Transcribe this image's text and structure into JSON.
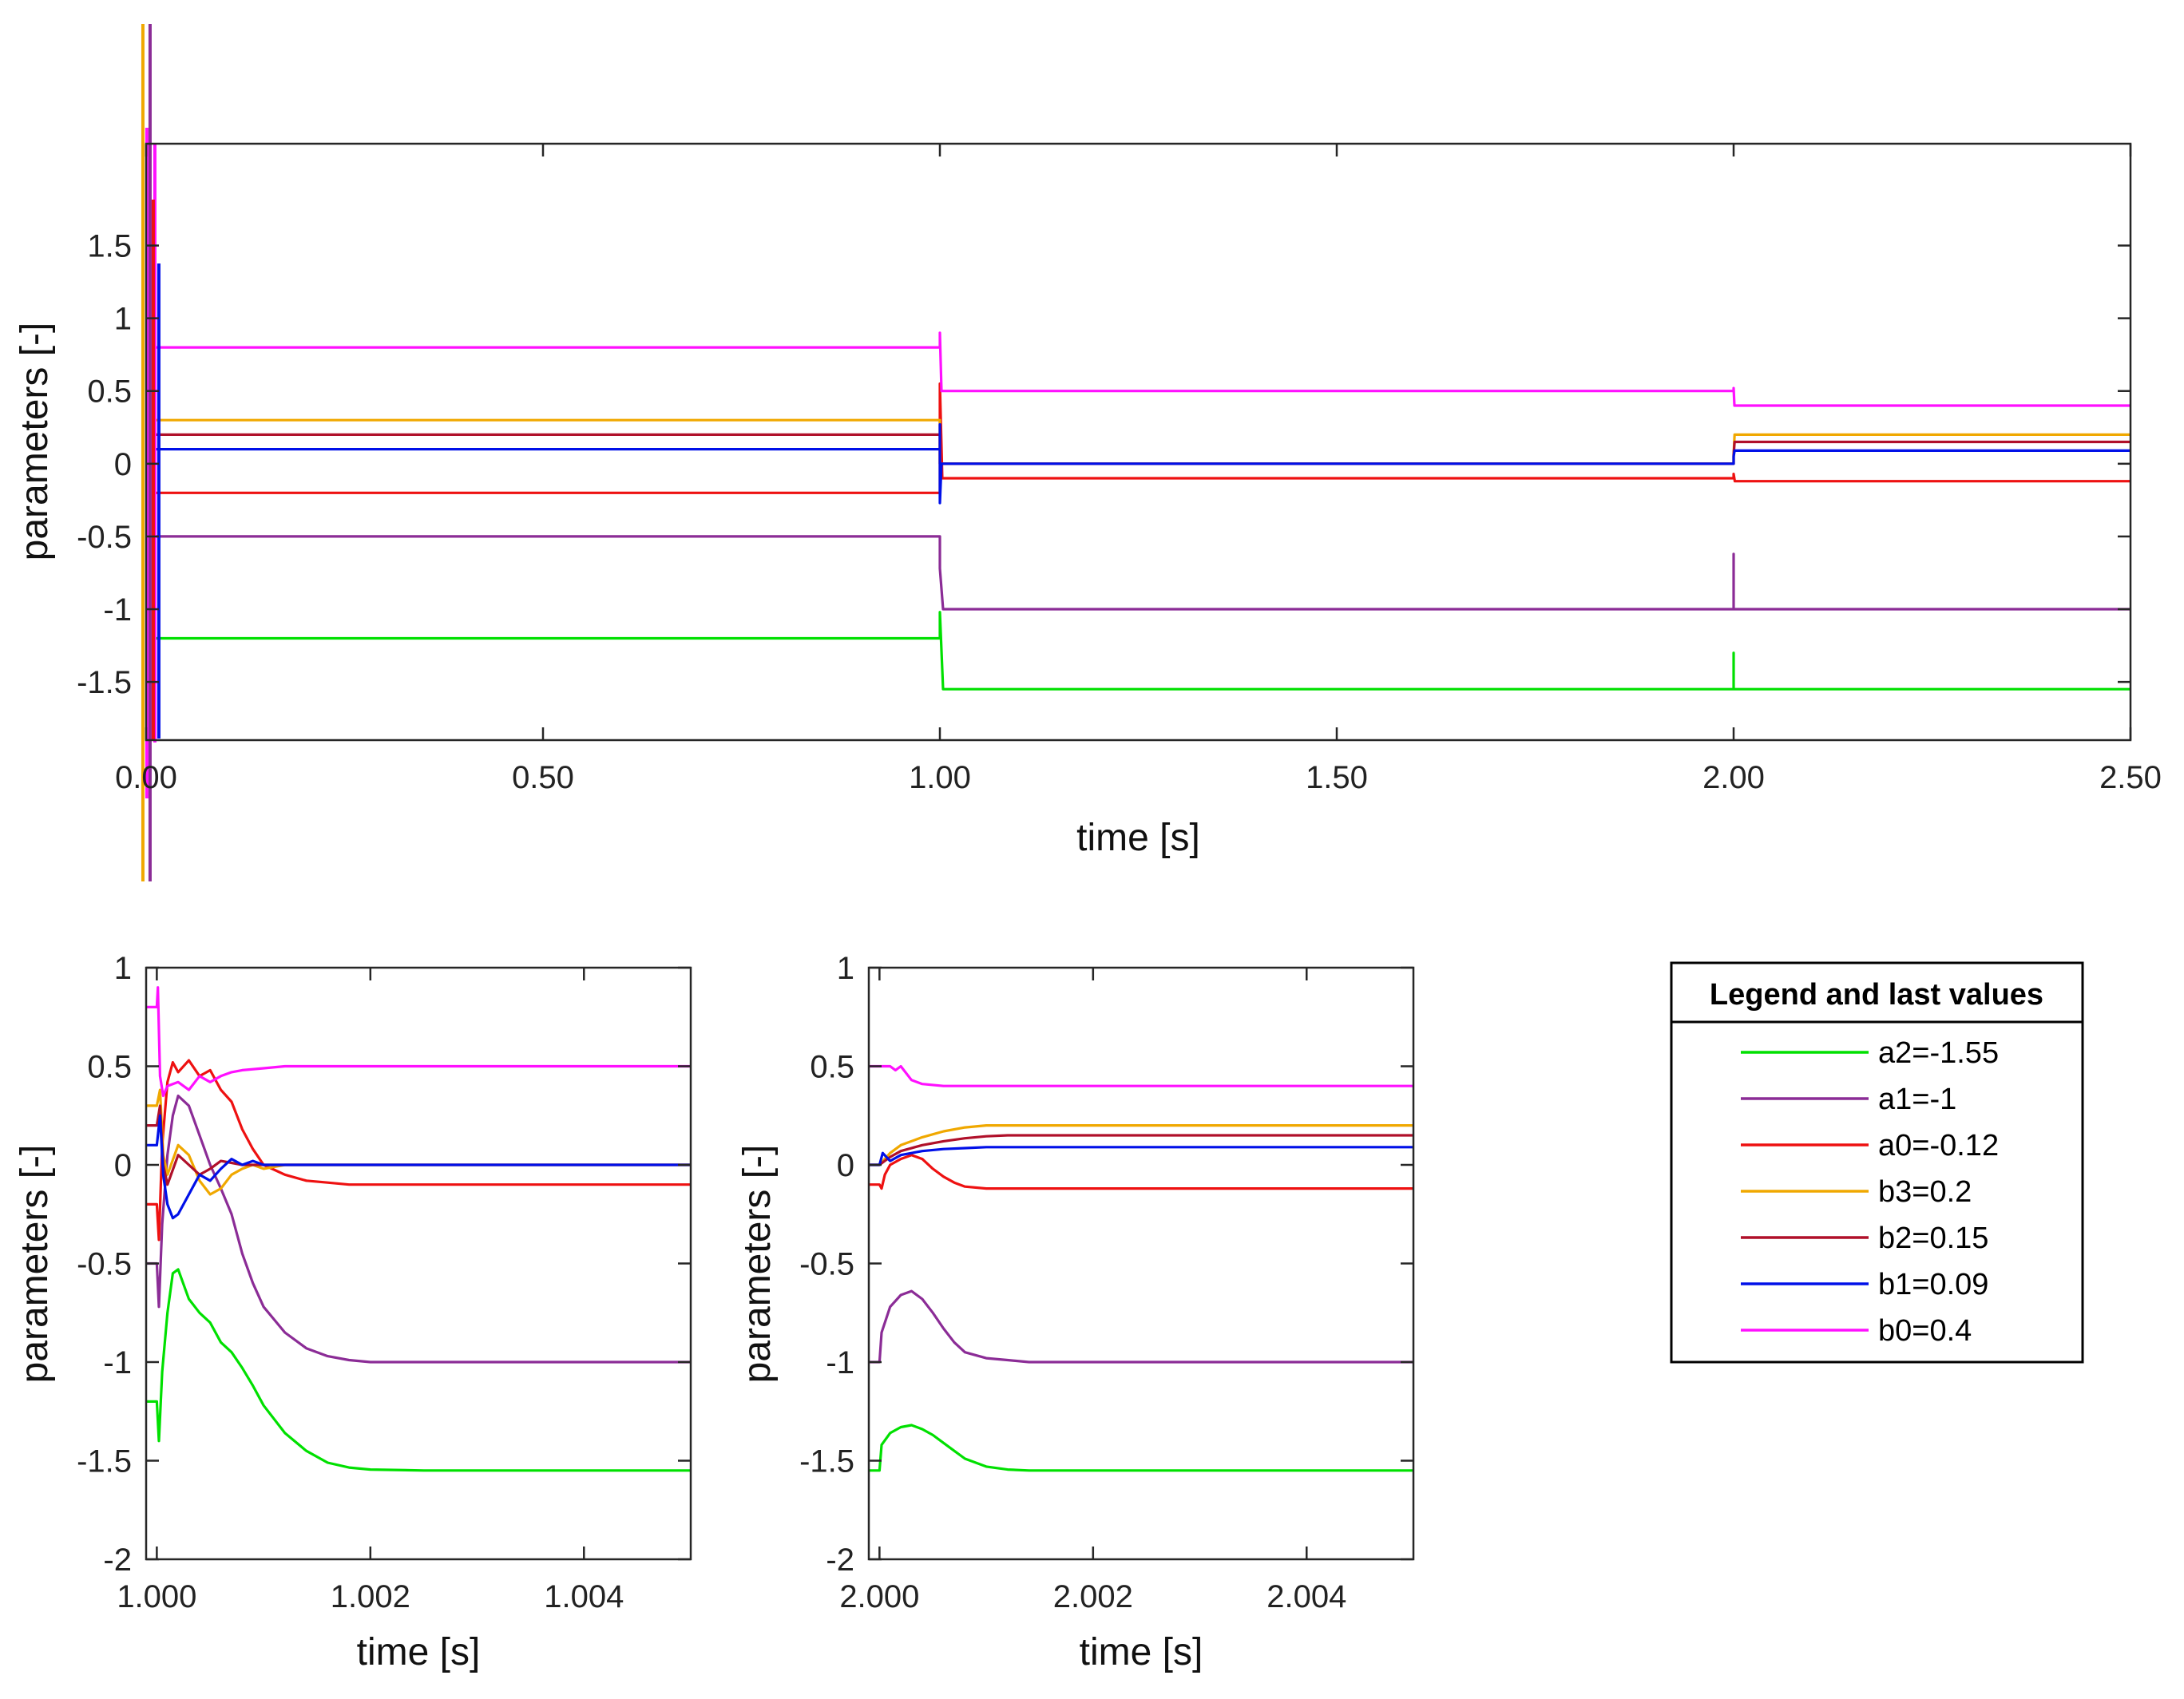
{
  "chart_data": [
    {
      "id": "overview",
      "type": "line",
      "title": "",
      "xlabel": "time [s]",
      "ylabel": "parameters [-]",
      "xlim": [
        0,
        2.5
      ],
      "ylim": [
        -1.9,
        2.2
      ],
      "xticks": [
        0,
        0.5,
        1.0,
        1.5,
        2.0,
        2.5
      ],
      "xtick_labels": [
        "0.00",
        "0.50",
        "1.00",
        "1.50",
        "2.00",
        "2.50"
      ],
      "yticks": [
        -1.5,
        -1,
        -0.5,
        0,
        0.5,
        1,
        1.5
      ],
      "ytick_labels": [
        "-1.5",
        "-1",
        "-0.5",
        "0",
        "0.5",
        "1",
        "1.5"
      ],
      "grid": false,
      "series": [
        {
          "name": "a2",
          "color": "#00e000",
          "x": [
            0.008,
            1.0,
            1.0,
            1.004,
            1.004,
            2.0,
            2.0,
            2.0,
            2.0025,
            2.0025,
            2.5
          ],
          "y": [
            -1.2,
            -1.2,
            -1.02,
            -1.55,
            -1.55,
            -1.55,
            -1.3,
            -1.55,
            -1.55,
            -1.55,
            -1.55
          ]
        },
        {
          "name": "a1",
          "color": "#8b2c96",
          "x": [
            0.008,
            1.0,
            1.0,
            1.004,
            1.004,
            2.0,
            2.0,
            2.0,
            2.0025,
            2.0025,
            2.5
          ],
          "y": [
            -0.5,
            -0.5,
            -0.72,
            -1.0,
            -1.0,
            -1.0,
            -0.62,
            -1.0,
            -1.0,
            -1.0,
            -1.0
          ]
        },
        {
          "name": "a0",
          "color": "#ee1111",
          "x": [
            0.008,
            1.0,
            1.0,
            1.003,
            2.0,
            2.0,
            2.0015,
            2.5
          ],
          "y": [
            -0.2,
            -0.2,
            0.55,
            -0.1,
            -0.1,
            -0.07,
            -0.12,
            -0.12
          ]
        },
        {
          "name": "b3",
          "color": "#f0a800",
          "x": [
            0.008,
            1.0,
            1.0,
            1.002,
            2.0,
            2.0,
            2.0012,
            2.5
          ],
          "y": [
            0.3,
            0.3,
            0.0,
            0.0,
            0.0,
            0.06,
            0.2,
            0.2
          ]
        },
        {
          "name": "b2",
          "color": "#b0102a",
          "x": [
            0.008,
            1.0,
            1.0,
            1.002,
            2.0,
            2.0,
            2.0012,
            2.5
          ],
          "y": [
            0.2,
            0.2,
            0.0,
            0.0,
            0.0,
            0.06,
            0.15,
            0.15
          ]
        },
        {
          "name": "b1",
          "color": "#0010e8",
          "x": [
            0.008,
            1.0,
            1.0,
            1.0,
            1.002,
            2.0,
            2.0,
            2.0012,
            2.5
          ],
          "y": [
            0.1,
            0.1,
            0.27,
            -0.27,
            0.0,
            0.0,
            0.05,
            0.09,
            0.09
          ]
        },
        {
          "name": "b0",
          "color": "#ff10ff",
          "x": [
            0.008,
            1.0,
            1.0,
            1.002,
            1.002,
            2.0,
            2.0,
            2.001,
            2.5
          ],
          "y": [
            0.8,
            0.8,
            0.9,
            0.5,
            0.5,
            0.5,
            0.52,
            0.4,
            0.4
          ]
        }
      ],
      "startup_transient": {
        "t": 0.01,
        "note": "strong oscillation of all estimates near t=0 before convergence"
      }
    },
    {
      "id": "zoom_switch_1",
      "type": "line",
      "title": "",
      "xlabel": "time [s]",
      "ylabel": "parameters [-]",
      "xlim": [
        0.9999,
        1.005
      ],
      "ylim": [
        -2,
        1
      ],
      "xticks": [
        1.0,
        1.002,
        1.004
      ],
      "xtick_labels": [
        "1.000",
        "1.002",
        "1.004"
      ],
      "yticks": [
        -2,
        -1.5,
        -1,
        -0.5,
        0,
        0.5,
        1
      ],
      "ytick_labels": [
        "-2",
        "-1.5",
        "-1",
        "-0.5",
        "0",
        "0.5",
        "1"
      ],
      "grid": false,
      "series": [
        {
          "name": "a2",
          "color": "#00e000",
          "x": [
            0.9999,
            1.0,
            1.00002,
            1.00005,
            1.0001,
            1.00015,
            1.0002,
            1.0003,
            1.0004,
            1.0005,
            1.0006,
            1.0007,
            1.0008,
            1.0009,
            1.001,
            1.0012,
            1.0014,
            1.0016,
            1.0018,
            1.002,
            1.0025,
            1.003,
            1.004,
            1.005
          ],
          "y": [
            -1.2,
            -1.2,
            -1.4,
            -1.05,
            -0.75,
            -0.55,
            -0.53,
            -0.68,
            -0.75,
            -0.8,
            -0.9,
            -0.95,
            -1.03,
            -1.12,
            -1.22,
            -1.36,
            -1.45,
            -1.51,
            -1.535,
            -1.545,
            -1.55,
            -1.55,
            -1.55,
            -1.55
          ]
        },
        {
          "name": "a1",
          "color": "#8b2c96",
          "x": [
            0.9999,
            1.0,
            1.00002,
            1.00005,
            1.0001,
            1.00015,
            1.0002,
            1.0003,
            1.0004,
            1.0005,
            1.0006,
            1.0007,
            1.0008,
            1.0009,
            1.001,
            1.0012,
            1.0014,
            1.0016,
            1.0018,
            1.002,
            1.0025,
            1.003,
            1.004,
            1.005
          ],
          "y": [
            -0.5,
            -0.5,
            -0.72,
            -0.3,
            0.05,
            0.25,
            0.35,
            0.3,
            0.15,
            0.0,
            -0.12,
            -0.25,
            -0.45,
            -0.6,
            -0.72,
            -0.85,
            -0.93,
            -0.97,
            -0.99,
            -1.0,
            -1.0,
            -1.0,
            -1.0,
            -1.0
          ]
        },
        {
          "name": "a0",
          "color": "#ee1111",
          "x": [
            0.9999,
            1.0,
            1.00002,
            1.00005,
            1.0001,
            1.00015,
            1.0002,
            1.0003,
            1.0004,
            1.0005,
            1.0006,
            1.0007,
            1.0008,
            1.0009,
            1.001,
            1.0012,
            1.0014,
            1.0016,
            1.0018,
            1.002,
            1.0025,
            1.003,
            1.004,
            1.005
          ],
          "y": [
            -0.2,
            -0.2,
            -0.38,
            0.1,
            0.42,
            0.52,
            0.47,
            0.53,
            0.45,
            0.48,
            0.38,
            0.32,
            0.18,
            0.08,
            0.0,
            -0.05,
            -0.08,
            -0.09,
            -0.1,
            -0.1,
            -0.1,
            -0.1,
            -0.1,
            -0.1
          ]
        },
        {
          "name": "b3",
          "color": "#f0a800",
          "x": [
            0.9999,
            1.0,
            1.00003,
            1.00006,
            1.0001,
            1.0002,
            1.0003,
            1.0004,
            1.0005,
            1.0006,
            1.0007,
            1.0008,
            1.0009,
            1.001,
            1.0012,
            1.0014,
            1.002,
            1.003,
            1.004,
            1.005
          ],
          "y": [
            0.3,
            0.3,
            0.38,
            0.05,
            -0.05,
            0.1,
            0.05,
            -0.08,
            -0.15,
            -0.12,
            -0.05,
            -0.02,
            0.0,
            -0.02,
            0.0,
            0.0,
            0.0,
            0.0,
            0.0,
            0.0
          ]
        },
        {
          "name": "b2",
          "color": "#b0102a",
          "x": [
            0.9999,
            1.0,
            1.00003,
            1.00006,
            1.0001,
            1.0002,
            1.0003,
            1.0004,
            1.0005,
            1.0006,
            1.0007,
            1.0008,
            1.0009,
            1.001,
            1.0012,
            1.0014,
            1.002,
            1.003,
            1.004,
            1.005
          ],
          "y": [
            0.2,
            0.2,
            0.3,
            0.0,
            -0.1,
            0.05,
            0.0,
            -0.05,
            -0.02,
            0.02,
            0.01,
            0.0,
            0.0,
            0.0,
            0.0,
            0.0,
            0.0,
            0.0,
            0.0,
            0.0
          ]
        },
        {
          "name": "b1",
          "color": "#0010e8",
          "x": [
            0.9999,
            1.0,
            1.00003,
            1.00006,
            1.0001,
            1.00015,
            1.0002,
            1.0003,
            1.0004,
            1.0005,
            1.0006,
            1.0007,
            1.0008,
            1.0009,
            1.001,
            1.0012,
            1.0014,
            1.002,
            1.003,
            1.004,
            1.005
          ],
          "y": [
            0.1,
            0.1,
            0.25,
            -0.05,
            -0.2,
            -0.27,
            -0.25,
            -0.15,
            -0.05,
            -0.08,
            -0.02,
            0.03,
            0.0,
            0.02,
            0.0,
            0.0,
            0.0,
            0.0,
            0.0,
            0.0,
            0.0
          ]
        },
        {
          "name": "b0",
          "color": "#ff10ff",
          "x": [
            0.9999,
            1.0,
            1.00001,
            1.00003,
            1.00006,
            1.0001,
            1.0002,
            1.0003,
            1.0004,
            1.0005,
            1.0006,
            1.0007,
            1.0008,
            1.001,
            1.0012,
            1.0015,
            1.002,
            1.003,
            1.004,
            1.005
          ],
          "y": [
            0.8,
            0.8,
            0.9,
            0.45,
            0.35,
            0.4,
            0.42,
            0.38,
            0.45,
            0.42,
            0.45,
            0.47,
            0.48,
            0.49,
            0.5,
            0.5,
            0.5,
            0.5,
            0.5,
            0.5
          ]
        }
      ]
    },
    {
      "id": "zoom_switch_2",
      "type": "line",
      "title": "",
      "xlabel": "time [s]",
      "ylabel": "parameters [-]",
      "xlim": [
        1.9999,
        2.005
      ],
      "ylim": [
        -2,
        1
      ],
      "xticks": [
        2.0,
        2.002,
        2.004
      ],
      "xtick_labels": [
        "2.000",
        "2.002",
        "2.004"
      ],
      "yticks": [
        -2,
        -1.5,
        -1,
        -0.5,
        0,
        0.5,
        1
      ],
      "ytick_labels": [
        "-2",
        "-1.5",
        "-1",
        "-0.5",
        "0",
        "0.5",
        "1"
      ],
      "grid": false,
      "series": [
        {
          "name": "a2",
          "color": "#00e000",
          "x": [
            1.9999,
            2.0,
            2.00002,
            2.0001,
            2.0002,
            2.0003,
            2.0004,
            2.0005,
            2.0006,
            2.0007,
            2.0008,
            2.001,
            2.0012,
            2.0014,
            2.0016,
            2.002,
            2.003,
            2.004,
            2.005
          ],
          "y": [
            -1.55,
            -1.55,
            -1.42,
            -1.36,
            -1.33,
            -1.32,
            -1.34,
            -1.37,
            -1.41,
            -1.45,
            -1.49,
            -1.53,
            -1.545,
            -1.55,
            -1.55,
            -1.55,
            -1.55,
            -1.55,
            -1.55
          ]
        },
        {
          "name": "a1",
          "color": "#8b2c96",
          "x": [
            1.9999,
            2.0,
            2.00002,
            2.0001,
            2.0002,
            2.0003,
            2.0004,
            2.0005,
            2.0006,
            2.0007,
            2.0008,
            2.001,
            2.0012,
            2.0014,
            2.0016,
            2.002,
            2.003,
            2.004,
            2.005
          ],
          "y": [
            -1.0,
            -1.0,
            -0.85,
            -0.72,
            -0.66,
            -0.64,
            -0.68,
            -0.75,
            -0.83,
            -0.9,
            -0.95,
            -0.98,
            -0.99,
            -1.0,
            -1.0,
            -1.0,
            -1.0,
            -1.0,
            -1.0
          ]
        },
        {
          "name": "a0",
          "color": "#ee1111",
          "x": [
            1.9999,
            2.0,
            2.00002,
            2.00005,
            2.0001,
            2.0002,
            2.0003,
            2.0004,
            2.0005,
            2.0006,
            2.0007,
            2.0008,
            2.001,
            2.0012,
            2.0014,
            2.002,
            2.003,
            2.004,
            2.005
          ],
          "y": [
            -0.1,
            -0.1,
            -0.12,
            -0.05,
            0.0,
            0.03,
            0.05,
            0.03,
            -0.02,
            -0.06,
            -0.09,
            -0.11,
            -0.12,
            -0.12,
            -0.12,
            -0.12,
            -0.12,
            -0.12,
            -0.12
          ]
        },
        {
          "name": "b3",
          "color": "#f0a800",
          "x": [
            1.9999,
            2.0,
            2.0001,
            2.0002,
            2.0004,
            2.0006,
            2.0008,
            2.001,
            2.0015,
            2.002,
            2.003,
            2.004,
            2.005
          ],
          "y": [
            0.0,
            0.0,
            0.06,
            0.1,
            0.14,
            0.17,
            0.19,
            0.2,
            0.2,
            0.2,
            0.2,
            0.2,
            0.2
          ]
        },
        {
          "name": "b2",
          "color": "#b0102a",
          "x": [
            1.9999,
            2.0,
            2.0001,
            2.0002,
            2.0004,
            2.0006,
            2.0008,
            2.001,
            2.0012,
            2.0015,
            2.002,
            2.003,
            2.004,
            2.005
          ],
          "y": [
            0.0,
            0.0,
            0.04,
            0.07,
            0.1,
            0.12,
            0.135,
            0.145,
            0.15,
            0.15,
            0.15,
            0.15,
            0.15,
            0.15
          ]
        },
        {
          "name": "b1",
          "color": "#0010e8",
          "x": [
            1.9999,
            2.0,
            2.00003,
            2.0001,
            2.0002,
            2.0004,
            2.0006,
            2.0008,
            2.001,
            2.0012,
            2.0015,
            2.002,
            2.003,
            2.004,
            2.005
          ],
          "y": [
            0.0,
            0.0,
            0.06,
            0.02,
            0.05,
            0.07,
            0.08,
            0.085,
            0.09,
            0.09,
            0.09,
            0.09,
            0.09,
            0.09,
            0.09
          ]
        },
        {
          "name": "b0",
          "color": "#ff10ff",
          "x": [
            1.9999,
            2.0,
            2.0001,
            2.00015,
            2.0002,
            2.0003,
            2.0004,
            2.0006,
            2.0008,
            2.001,
            2.0015,
            2.002,
            2.003,
            2.004,
            2.005
          ],
          "y": [
            0.5,
            0.5,
            0.5,
            0.48,
            0.5,
            0.43,
            0.41,
            0.4,
            0.4,
            0.4,
            0.4,
            0.4,
            0.4,
            0.4,
            0.4
          ]
        }
      ]
    }
  ],
  "legend": {
    "title": "Legend and last values",
    "entries": [
      {
        "label": "a2=-1.55",
        "color": "#00e000"
      },
      {
        "label": "a1=-1",
        "color": "#8b2c96"
      },
      {
        "label": "a0=-0.12",
        "color": "#ee1111"
      },
      {
        "label": "b3=0.2",
        "color": "#f0a800"
      },
      {
        "label": "b2=0.15",
        "color": "#b0102a"
      },
      {
        "label": "b1=0.09",
        "color": "#0010e8"
      },
      {
        "label": "b0=0.4",
        "color": "#ff10ff"
      }
    ]
  }
}
